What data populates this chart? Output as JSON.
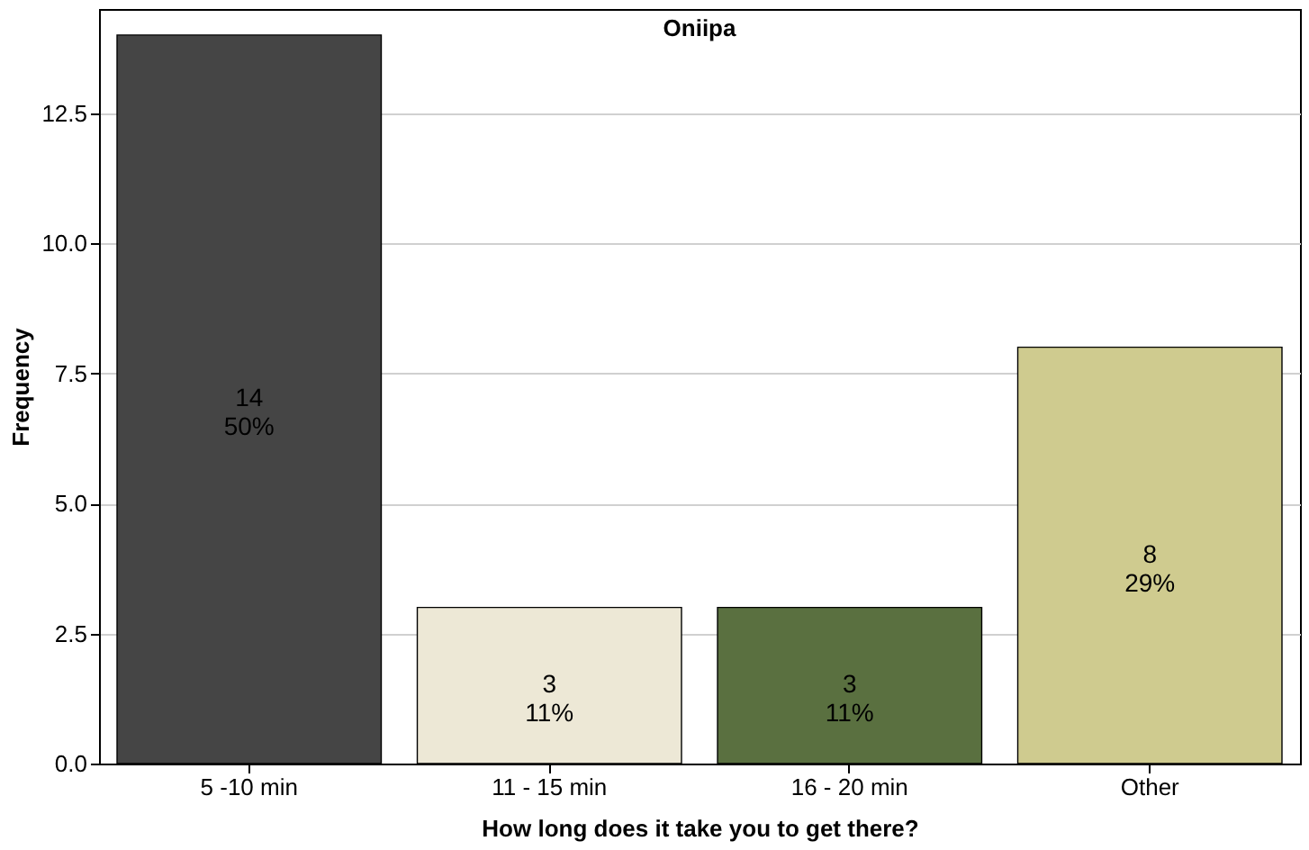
{
  "chart_data": {
    "type": "bar",
    "title": "Oniipa",
    "xlabel": "How long does it take you to get there?",
    "ylabel": "Frequency",
    "categories": [
      "5 -10 min",
      "11 - 15 min",
      "16 - 20 min",
      "Other"
    ],
    "values": [
      14,
      3,
      3,
      8
    ],
    "colors": [
      "#454545",
      "#ede8d6",
      "#5a7040",
      "#cfcb8f"
    ],
    "value_labels": [
      "14\n50%",
      "3\n11%",
      "3\n11%",
      "8\n29%"
    ],
    "ylim": [
      0,
      14.5
    ],
    "yticks": [
      {
        "value": 0,
        "label": "0.0"
      },
      2.5,
      {
        "value": 5,
        "label": "5.0"
      },
      7.5,
      {
        "value": 10,
        "label": "10.0"
      },
      12.5
    ],
    "grid": "y"
  }
}
